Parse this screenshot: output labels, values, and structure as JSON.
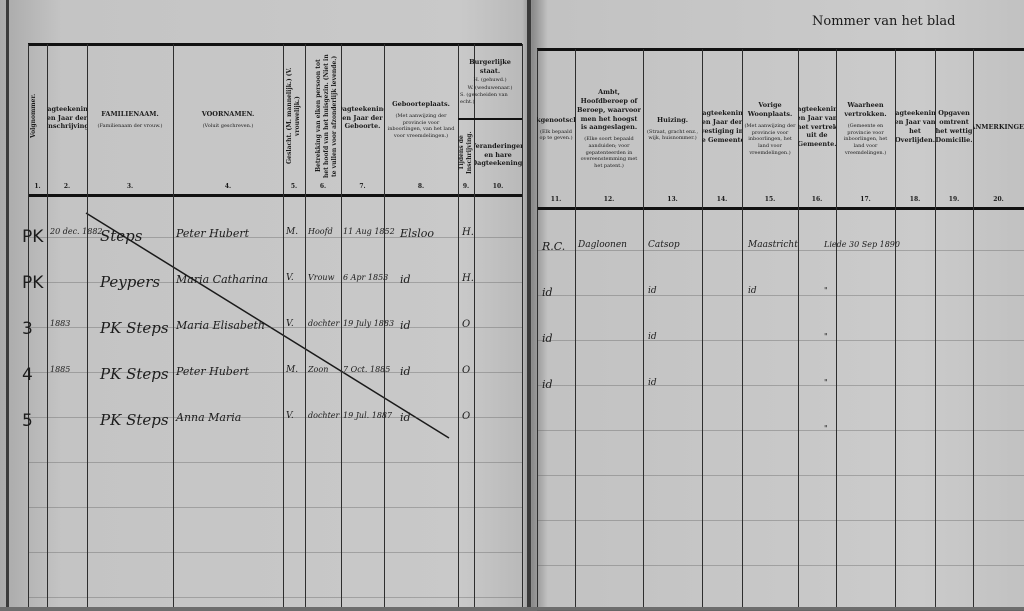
{
  "page_title": "Nommer van het blad",
  "left_columns": [
    {
      "num": "1.",
      "title": "Volgnommer.",
      "note": "",
      "rotated": true
    },
    {
      "num": "2.",
      "title": "Dagteekening en Jaar der Inschrijving",
      "note": ""
    },
    {
      "num": "3.",
      "title": "FAMILIENAAM.",
      "note": "(Familienaam der vrouw.)"
    },
    {
      "num": "4.",
      "title": "VOORNAMEN.",
      "note": "(Voluit geschreven.)"
    },
    {
      "num": "5.",
      "title": "Geslacht. (M. mannelijk.) (V. vrouwelijk.)",
      "note": "",
      "rotated": true
    },
    {
      "num": "6.",
      "title": "Betrekking van elken persoon tot het hoofd van het huisgezin. (Niet in te vullen voor afzonderlijk levende.)",
      "note": "",
      "rotated": true
    },
    {
      "num": "7.",
      "title": "Dagteekening en Jaar der Geboorte.",
      "note": ""
    },
    {
      "num": "8.",
      "title": "Geboorteplaats.",
      "note": "(Met aanwijzing der provincie voor inboorlingen, van het land voor vreemdelingen.)"
    },
    {
      "num": "9.",
      "title": "Tijdens de Inschrijving.",
      "note": "",
      "rotated": true
    },
    {
      "num": "10.",
      "title": "Veranderingen en hare Dagteekening.",
      "note": ""
    }
  ],
  "burgerlijke_staat": {
    "title": "Burgerlijke staat.",
    "lines": [
      "H. (gehuwd.)",
      "W. (weduwenaar.)",
      "S. (gescheiden van echt.)"
    ]
  },
  "right_columns": [
    {
      "num": "11.",
      "title": "Kerkgenootschap.",
      "note": "(Elk bepaald op te geven.)"
    },
    {
      "num": "12.",
      "title": "Ambt, Hoofdberoep of Beroep, waarvoor men het hoogst is aangeslagen.",
      "note": "(Elke soort bepaald aanduiden; voor gepatenteerden in overeenstemming met het patent.)"
    },
    {
      "num": "13.",
      "title": "Huizing.",
      "note": "(Straat, gracht enz., wijk, huisnommer.)"
    },
    {
      "num": "14.",
      "title": "Dagteekening en Jaar der vestiging in de Gemeente.",
      "note": ""
    },
    {
      "num": "15.",
      "title": "Vorige Woonplaats.",
      "note": "(Met aanwijzing der provincie voor inboorlingen, het land voor vreemdelingen.)"
    },
    {
      "num": "16.",
      "title": "Dagteekening en Jaar van het vertrek uit de Gemeente.",
      "note": ""
    },
    {
      "num": "17.",
      "title": "Waarheen vertrokken.",
      "note": "(Gemeente en provincie voor inboorlingen, het land voor vreemdelingen.)"
    },
    {
      "num": "18.",
      "title": "Dagteekening en Jaar van het Overlijden.",
      "note": ""
    },
    {
      "num": "19.",
      "title": "Opgaven omtrent het wettig Domicilie.",
      "note": ""
    },
    {
      "num": "20.",
      "title": "AANMERKINGEN.",
      "note": ""
    }
  ],
  "rows": [
    {
      "c1": "PK",
      "c2": "20 dec. 1882",
      "c3": "Steps",
      "c4": "Peter Hubert",
      "c5": "M.",
      "c6": "Hoofd",
      "c7": "11 Aug 1852",
      "c8": "Elsloo",
      "c9": "H.",
      "c11": "R.C.",
      "c12": "Dagloonen",
      "c13": "Catsop",
      "c15": "Maastricht",
      "c17": "Liede 30 Sep 1890"
    },
    {
      "c1": "PK",
      "c2": "",
      "c3": "Peypers",
      "c4": "Maria Catharina",
      "c5": "V.",
      "c6": "Vrouw",
      "c7": "6 Apr 1853",
      "c8": "id",
      "c9": "H.",
      "c11": "id",
      "c13": "id",
      "c15": "id",
      "c17": "\""
    },
    {
      "c1": "3",
      "c2": "1883",
      "c3": "PK Steps",
      "c4": "Maria Elisabeth",
      "c5": "V.",
      "c6": "dochter",
      "c7": "19 July 1883",
      "c8": "id",
      "c9": "O",
      "c11": "id",
      "c13": "id",
      "c15": "",
      "c17": "\""
    },
    {
      "c1": "4",
      "c2": "1885",
      "c3": "PK Steps",
      "c4": "Peter Hubert",
      "c5": "M.",
      "c6": "Zoon",
      "c7": "7 Oct. 1885",
      "c8": "id",
      "c9": "O",
      "c11": "id",
      "c13": "id",
      "c15": "",
      "c17": "\""
    },
    {
      "c1": "5",
      "c2": "",
      "c3": "PK Steps",
      "c4": "Anna Maria",
      "c5": "V.",
      "c6": "dochter",
      "c7": "19 Jul. 1887",
      "c8": "id",
      "c9": "O",
      "c11": "",
      "c13": "",
      "c15": "",
      "c17": "\""
    }
  ]
}
